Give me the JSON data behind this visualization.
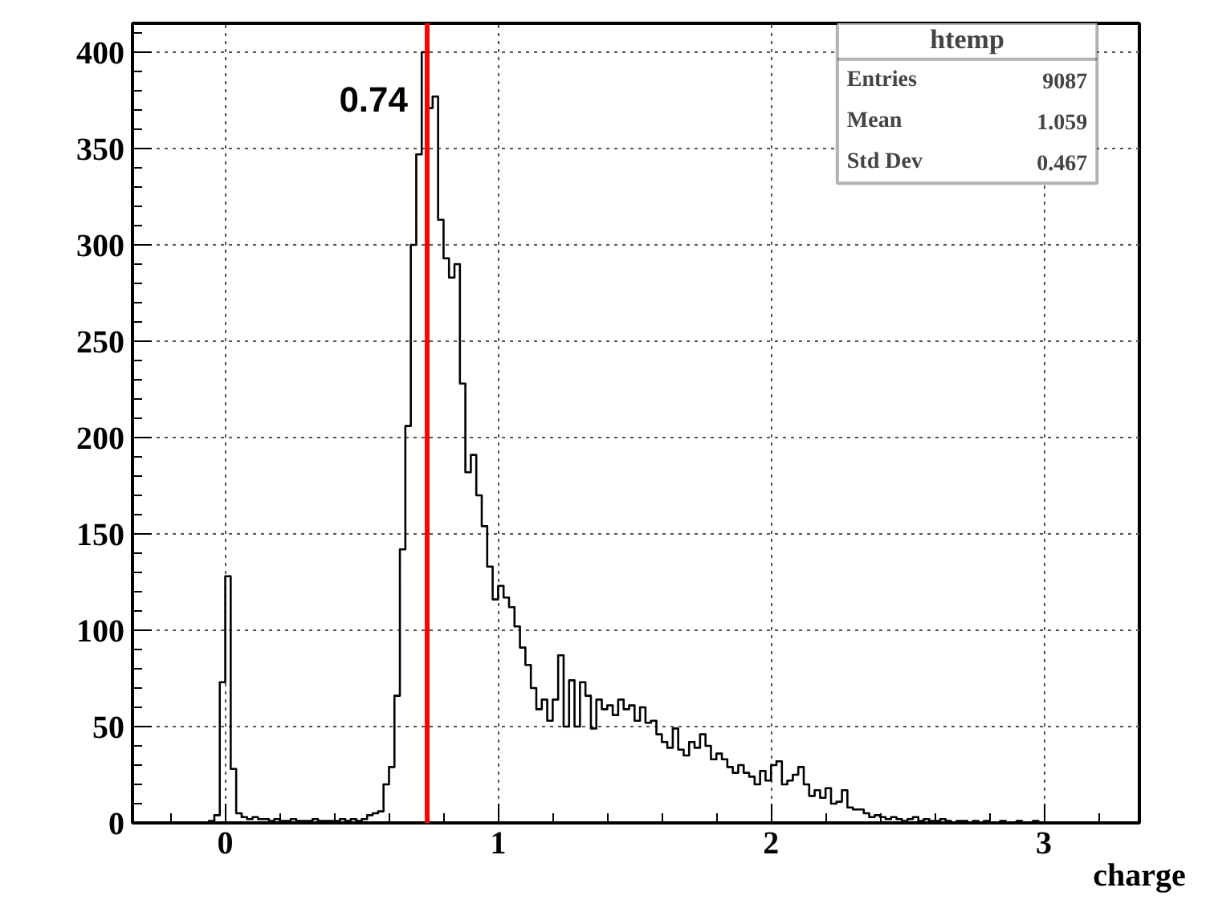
{
  "chart_data": {
    "type": "histogram",
    "xlabel": "charge",
    "color": "#000000",
    "bins": [
      -0.06,
      -0.04,
      -0.02,
      0.0,
      0.02,
      0.04,
      0.06,
      0.08,
      0.1,
      0.12,
      0.14,
      0.16,
      0.18,
      0.2,
      0.22,
      0.24,
      0.26,
      0.28,
      0.3,
      0.32,
      0.34,
      0.36,
      0.38,
      0.4,
      0.42,
      0.44,
      0.46,
      0.48,
      0.5,
      0.52,
      0.54,
      0.56,
      0.58,
      0.6,
      0.62,
      0.64,
      0.66,
      0.68,
      0.7,
      0.72,
      0.74,
      0.76,
      0.78,
      0.8,
      0.82,
      0.84,
      0.86,
      0.88,
      0.9,
      0.92,
      0.94,
      0.96,
      0.98,
      1.0,
      1.02,
      1.04,
      1.06,
      1.08,
      1.1,
      1.12,
      1.14,
      1.16,
      1.18,
      1.2,
      1.22,
      1.24,
      1.26,
      1.28,
      1.3,
      1.32,
      1.34,
      1.36,
      1.38,
      1.4,
      1.42,
      1.44,
      1.46,
      1.48,
      1.5,
      1.52,
      1.54,
      1.56,
      1.58,
      1.6,
      1.62,
      1.64,
      1.66,
      1.68,
      1.7,
      1.72,
      1.74,
      1.76,
      1.78,
      1.8,
      1.82,
      1.84,
      1.86,
      1.88,
      1.9,
      1.92,
      1.94,
      1.96,
      1.98,
      2.0,
      2.02,
      2.04,
      2.06,
      2.08,
      2.1,
      2.12,
      2.14,
      2.16,
      2.18,
      2.2,
      2.22,
      2.24,
      2.26,
      2.28,
      2.3,
      2.32,
      2.34,
      2.36,
      2.38,
      2.4,
      2.42,
      2.44,
      2.46,
      2.48,
      2.5,
      2.52,
      2.54,
      2.56,
      2.58,
      2.6,
      2.62,
      2.64,
      2.66,
      2.68,
      2.7,
      2.72,
      2.74,
      2.76,
      2.78,
      2.8,
      2.82,
      2.84,
      2.86,
      2.88,
      2.9,
      2.92,
      2.94,
      2.96,
      2.98
    ],
    "values": [
      1,
      4,
      73,
      128,
      28,
      5,
      3,
      2,
      3,
      2,
      2,
      1,
      2,
      1,
      1,
      2,
      1,
      1,
      1,
      2,
      1,
      1,
      1,
      1,
      2,
      1,
      2,
      1,
      2,
      4,
      5,
      6,
      20,
      29,
      66,
      142,
      206,
      300,
      347,
      400,
      371,
      377,
      313,
      293,
      283,
      290,
      228,
      182,
      191,
      170,
      154,
      133,
      116,
      123,
      117,
      112,
      102,
      91,
      82,
      70,
      59,
      64,
      53,
      64,
      87,
      50,
      74,
      50,
      73,
      66,
      49,
      64,
      59,
      61,
      56,
      64,
      59,
      61,
      53,
      60,
      52,
      53,
      46,
      42,
      39,
      49,
      38,
      35,
      42,
      39,
      46,
      40,
      33,
      36,
      33,
      29,
      26,
      30,
      26,
      24,
      20,
      27,
      22,
      30,
      32,
      20,
      22,
      25,
      29,
      20,
      14,
      17,
      13,
      18,
      10,
      11,
      17,
      8,
      7,
      7,
      5,
      3,
      4,
      3,
      2,
      3,
      2,
      1,
      2,
      3,
      1,
      2,
      1,
      1,
      2,
      1,
      0,
      1,
      1,
      0,
      1,
      0,
      1,
      0,
      0,
      1,
      0,
      0,
      1,
      0,
      0,
      1
    ],
    "xlim": [
      -0.34,
      3.35
    ],
    "ylim": [
      0,
      415
    ],
    "xticks": [
      0,
      1,
      2,
      3
    ],
    "yticks": [
      0,
      50,
      100,
      150,
      200,
      250,
      300,
      350,
      400
    ],
    "grid": true,
    "ref_lines": [
      {
        "axis": "x",
        "value": 0.74,
        "label": "0.74",
        "color": "#ff0000"
      }
    ],
    "annotations": [
      "htemp",
      "Entries",
      "9087",
      "Mean",
      "1.059",
      "Std Dev",
      "0.467"
    ]
  }
}
